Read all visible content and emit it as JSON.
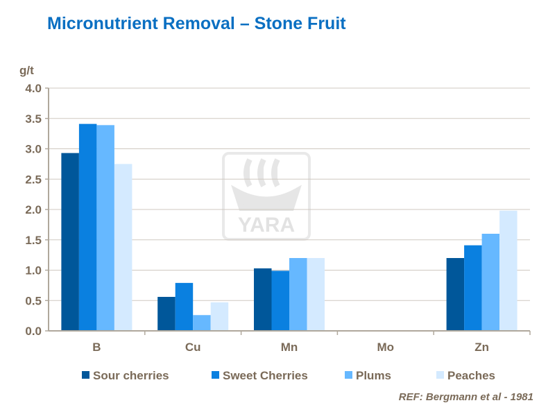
{
  "chart_data": {
    "type": "bar",
    "title": "Micronutrient Removal – Stone Fruit",
    "ylabel": "g/t",
    "xlabel": "",
    "ylim": [
      0,
      4.0
    ],
    "yticks": [
      "0.0",
      "0.5",
      "1.0",
      "1.5",
      "2.0",
      "2.5",
      "3.0",
      "3.5",
      "4.0"
    ],
    "grid": true,
    "legend_position": "bottom",
    "categories": [
      "B",
      "Cu",
      "Mn",
      "Mo",
      "Zn"
    ],
    "series": [
      {
        "name": "Sour cherries",
        "color": "#00579a",
        "values": [
          2.93,
          0.56,
          1.03,
          0.01,
          1.2
        ]
      },
      {
        "name": "Sweet Cherries",
        "color": "#0a80e0",
        "values": [
          3.41,
          0.79,
          0.99,
          0.01,
          1.41
        ]
      },
      {
        "name": "Plums",
        "color": "#66b8ff",
        "values": [
          3.39,
          0.26,
          1.2,
          0.01,
          1.6
        ]
      },
      {
        "name": "Peaches",
        "color": "#d4eaff",
        "values": [
          2.75,
          0.47,
          1.2,
          0.01,
          1.98
        ]
      }
    ],
    "watermark": "YARA"
  },
  "reference": "REF: Bergmann et al - 1981"
}
